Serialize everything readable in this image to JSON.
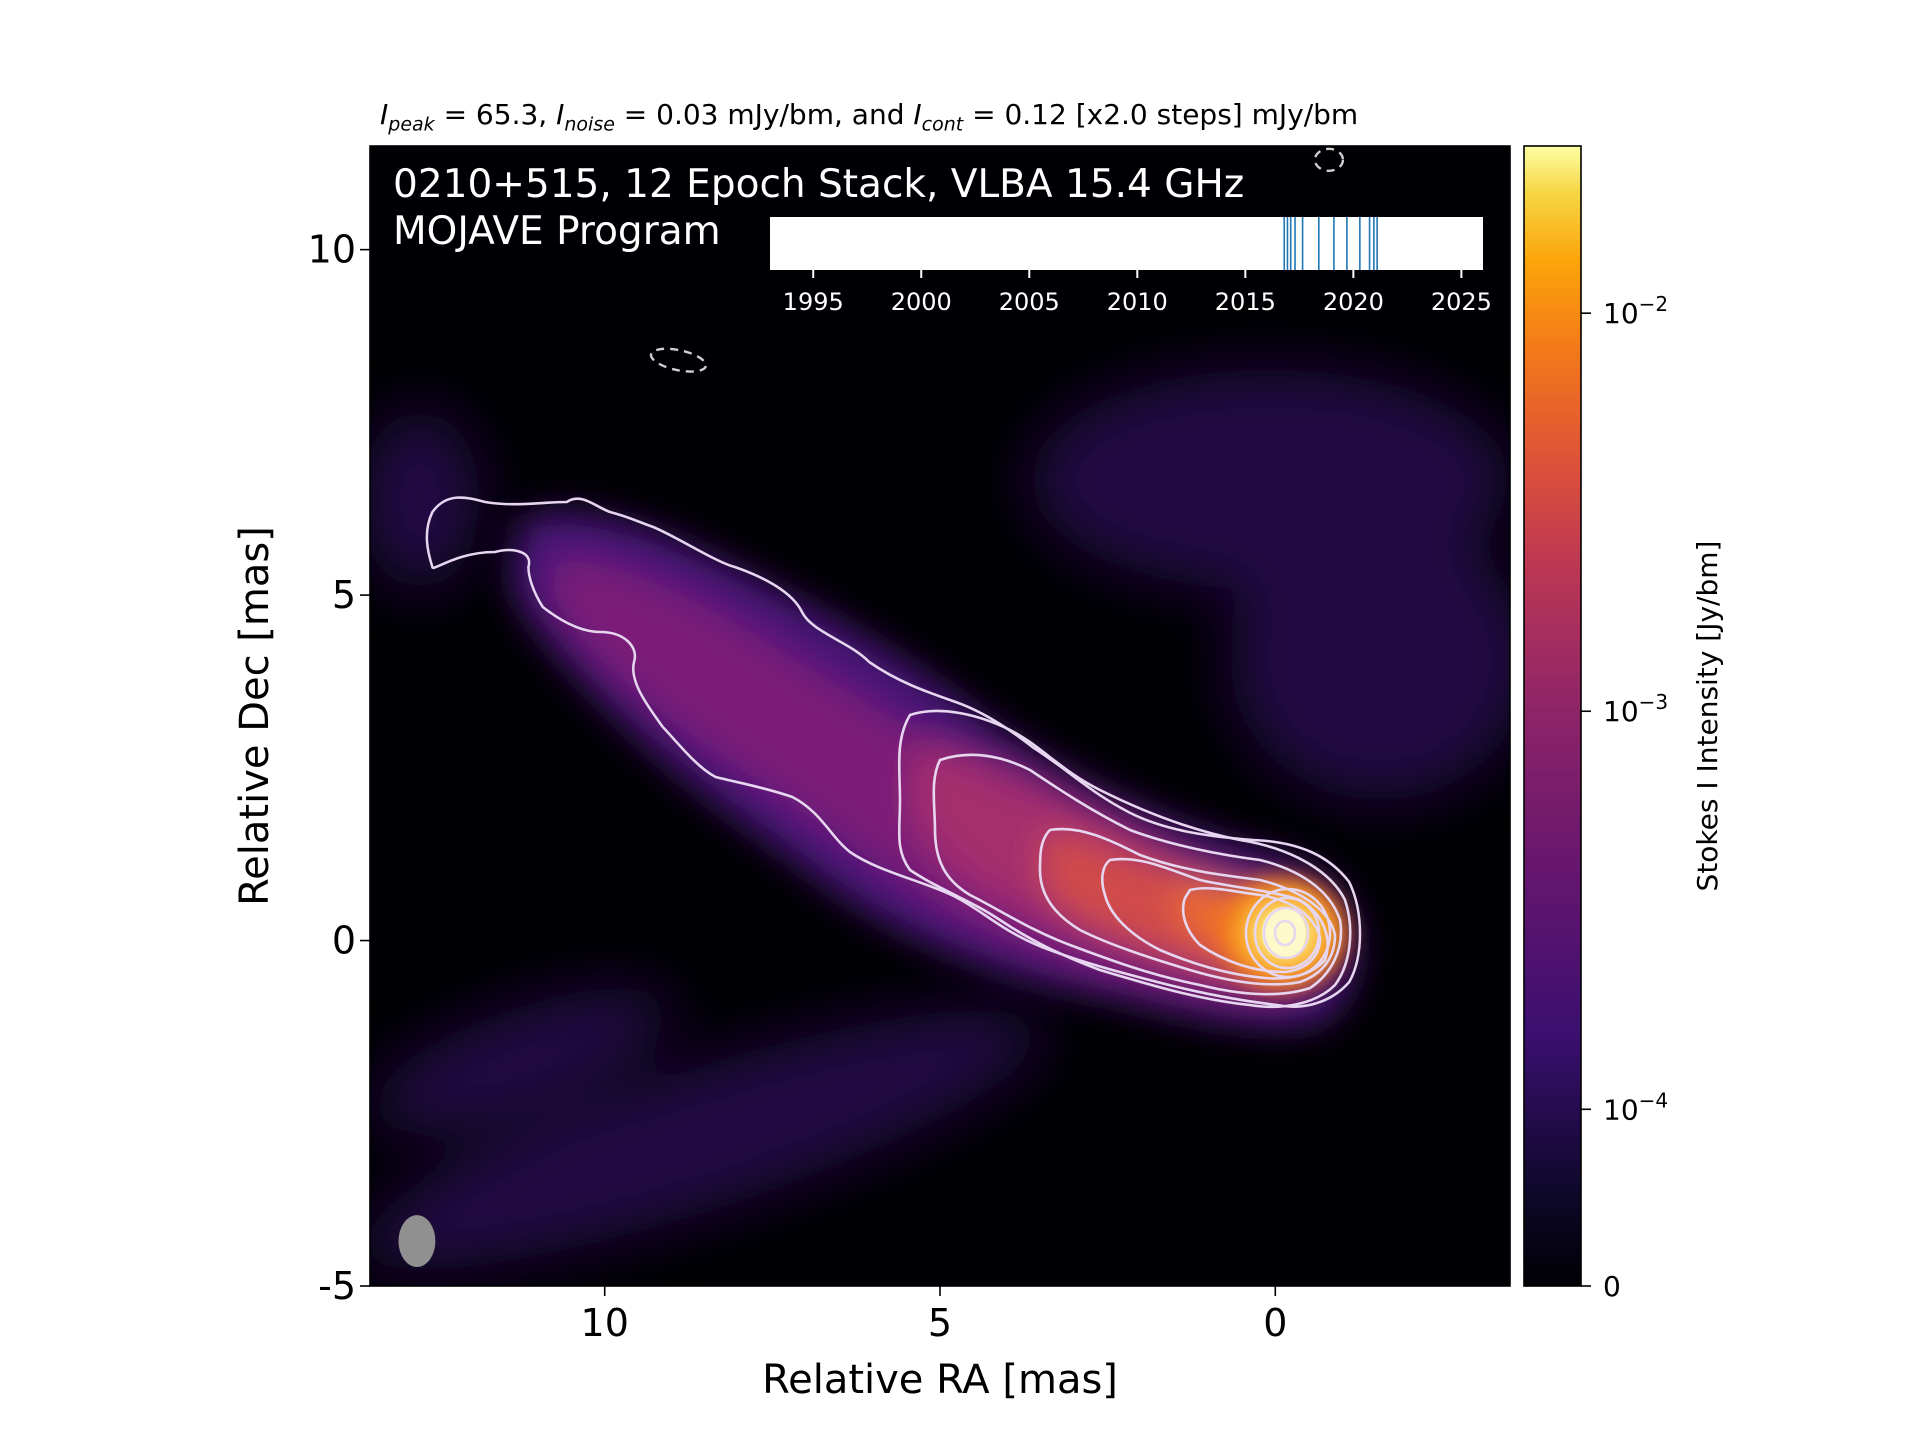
{
  "header": {
    "peak_symbol": "I",
    "peak_sub": "peak",
    "peak_text": " = 65.3, ",
    "noise_symbol": "I",
    "noise_sub": "noise",
    "noise_text": " = 0.03 mJy/bm, and ",
    "cont_symbol": "I",
    "cont_sub": "cont",
    "cont_text": " = 0.12 [x2.0 steps] mJy/bm"
  },
  "image_labels": {
    "line1": "0210+515, 12 Epoch Stack, VLBA 15.4 GHz",
    "line2": "MOJAVE Program"
  },
  "colors": {
    "background": "#000004",
    "jet_low": "#3b0f70",
    "jet_mid": "#b73779",
    "jet_high": "#fc8961",
    "core": "#fcfdbf",
    "contour": "#e6d6f0",
    "beam": "#909090",
    "epoch_line": "#1f77b4"
  },
  "chart_data": [
    {
      "type": "heatmap",
      "xlabel": "Relative RA [mas]",
      "ylabel": "Relative Dec [mas]",
      "xlim": [
        13.5,
        -3.5
      ],
      "ylim": [
        -5,
        11.5
      ],
      "x_ticks": [
        10,
        5,
        0
      ],
      "x_tick_labels": [
        "10",
        "5",
        "0"
      ],
      "y_ticks": [
        10,
        5,
        0,
        -5
      ],
      "y_tick_labels": [
        "10",
        "5",
        "0",
        "-5"
      ],
      "colormap": "inferno",
      "colorbar": {
        "label": "Stokes I Intensity [Jy/bm]",
        "scale": "log",
        "ticks": [
          {
            "value": 0.01,
            "base": "10",
            "exp": "−2"
          },
          {
            "value": 0.001,
            "base": "10",
            "exp": "−3"
          },
          {
            "value": 0.0001,
            "base": "10",
            "exp": "−4"
          },
          {
            "value": 0,
            "label": "0"
          }
        ]
      },
      "peak_intensity_mJy_per_beam": 65.3,
      "noise_mJy_per_beam": 0.03,
      "lowest_contour_mJy_per_beam": 0.12,
      "contour_step_factor": 2.0,
      "contour_count": 10,
      "jet_ridge": [
        [
          0,
          0
        ],
        [
          1.5,
          0.6
        ],
        [
          3.0,
          1.2
        ],
        [
          5.0,
          2.1
        ],
        [
          7.0,
          3.2
        ],
        [
          9.0,
          4.8
        ],
        [
          11.0,
          5.8
        ]
      ],
      "beam": {
        "x": 12.8,
        "y": -4.35,
        "major_mas": 0.75,
        "minor_mas": 0.55,
        "pa_deg": 0
      },
      "negative_contours_dashed": [
        {
          "x": 8.9,
          "y": 8.4
        },
        {
          "x": -0.8,
          "y": 11.3
        }
      ]
    },
    {
      "type": "scatter",
      "name": "epoch timeline",
      "xlim": [
        1993,
        2026
      ],
      "x_ticks": [
        1995,
        2000,
        2005,
        2010,
        2015,
        2020,
        2025
      ],
      "x_tick_labels": [
        "1995",
        "2000",
        "2005",
        "2010",
        "2015",
        "2020",
        "2025"
      ],
      "epochs": [
        2016.8,
        2016.95,
        2017.1,
        2017.3,
        2017.65,
        2018.4,
        2019.1,
        2019.7,
        2020.3,
        2020.75,
        2020.95,
        2021.1
      ]
    }
  ]
}
